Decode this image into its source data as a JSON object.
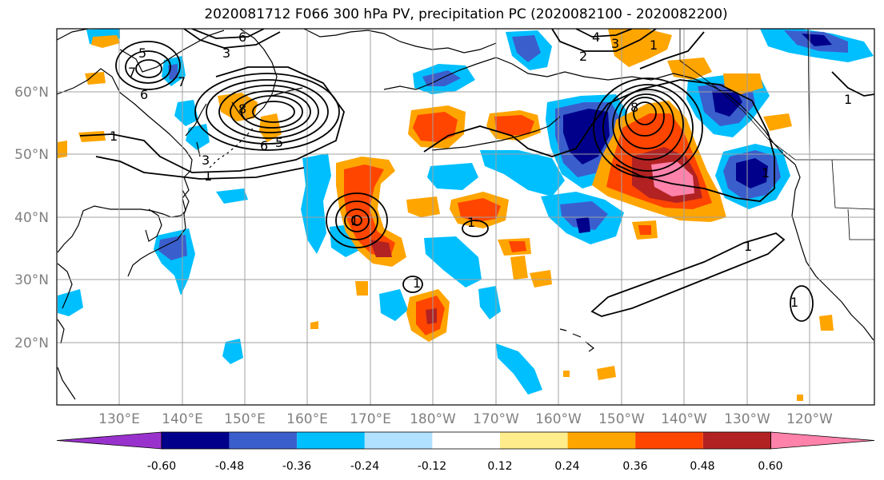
{
  "title": "2020081712 F066 300 hPa PV, precipitation PC (2020082100 - 2020082200)",
  "lat_labels": [
    "60°N",
    "50°N",
    "40°N",
    "30°N",
    "20°N"
  ],
  "lon_labels": [
    "130°E",
    "140°E",
    "150°E",
    "160°E",
    "170°E",
    "180°W",
    "170°W",
    "160°W",
    "150°W",
    "140°W",
    "130°W",
    "120°W"
  ],
  "colorbar": {
    "ticks": [
      "-0.60",
      "-0.48",
      "-0.36",
      "-0.24",
      "-0.12",
      "0.12",
      "0.24",
      "0.36",
      "0.48",
      "0.60"
    ],
    "colors": [
      "#9932cc",
      "#00008b",
      "#3a5fcd",
      "#00bfff",
      "#b0e2ff",
      "#ffffff",
      "#ffec8b",
      "#ffa500",
      "#ff4500",
      "#b22222",
      "#ff82ab"
    ]
  },
  "contour_labels": [
    "5",
    "6",
    "7",
    "6",
    "3",
    "7",
    "1",
    "8",
    "6",
    "5",
    "3",
    "1",
    "1",
    "4",
    "3",
    "2",
    "1",
    "8",
    "1",
    "1",
    "1",
    "1",
    "1",
    "1"
  ],
  "colors": {
    "land": "#000000",
    "grid": "#a0a0a0",
    "pv_contour": "#000000"
  }
}
